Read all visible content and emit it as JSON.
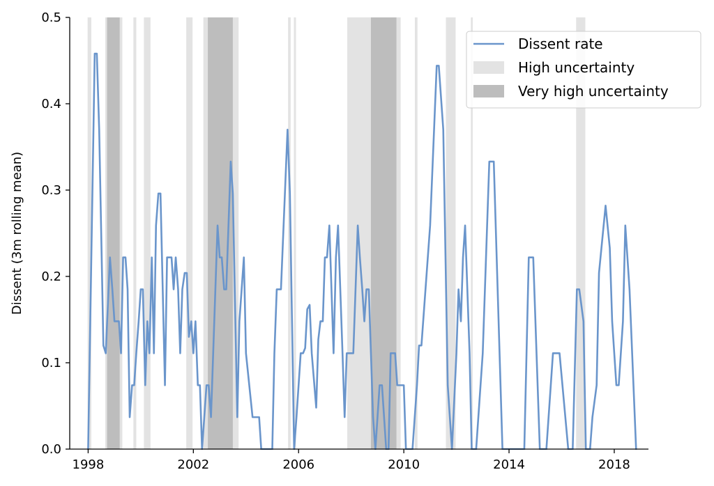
{
  "chart_data": {
    "type": "line",
    "title": "",
    "xlabel": "",
    "ylabel": "Dissent (3m rolling mean)",
    "xlim": [
      1997.3,
      2019.3
    ],
    "ylim": [
      0,
      0.5
    ],
    "x_ticks": [
      1998,
      2002,
      2006,
      2010,
      2014,
      2018
    ],
    "y_ticks": [
      0.0,
      0.1,
      0.2,
      0.3,
      0.4,
      0.5
    ],
    "legend_position": "top-right",
    "colors": {
      "line": "#6a95cb",
      "high": "#e3e3e3",
      "very_high": "#bdbdbd"
    },
    "legend": [
      {
        "label": "Dissent rate",
        "kind": "line"
      },
      {
        "label": "High uncertainty",
        "kind": "high"
      },
      {
        "label": "Very high uncertainty",
        "kind": "very_high"
      }
    ],
    "bands": [
      {
        "kind": "high",
        "start": 1997.98,
        "end": 1998.12
      },
      {
        "kind": "high",
        "start": 1998.65,
        "end": 1999.3
      },
      {
        "kind": "very_high",
        "start": 1998.72,
        "end": 1999.2
      },
      {
        "kind": "high",
        "start": 1999.72,
        "end": 1999.83
      },
      {
        "kind": "high",
        "start": 2000.12,
        "end": 2000.37
      },
      {
        "kind": "high",
        "start": 2001.73,
        "end": 2001.97
      },
      {
        "kind": "high",
        "start": 2002.38,
        "end": 2003.72
      },
      {
        "kind": "very_high",
        "start": 2002.55,
        "end": 2003.5
      },
      {
        "kind": "high",
        "start": 2005.6,
        "end": 2005.7
      },
      {
        "kind": "high",
        "start": 2005.82,
        "end": 2005.9
      },
      {
        "kind": "high",
        "start": 2007.85,
        "end": 2009.88
      },
      {
        "kind": "very_high",
        "start": 2008.75,
        "end": 2009.72
      },
      {
        "kind": "high",
        "start": 2010.42,
        "end": 2010.52
      },
      {
        "kind": "high",
        "start": 2011.6,
        "end": 2011.97
      },
      {
        "kind": "high",
        "start": 2012.55,
        "end": 2012.62
      },
      {
        "kind": "high",
        "start": 2016.55,
        "end": 2016.9
      }
    ],
    "series": [
      {
        "name": "Dissent rate",
        "points": [
          [
            1998.0,
            0.0
          ],
          [
            1998.25,
            0.458
          ],
          [
            1998.33,
            0.458
          ],
          [
            1998.42,
            0.37
          ],
          [
            1998.58,
            0.12
          ],
          [
            1998.67,
            0.111
          ],
          [
            1998.83,
            0.222
          ],
          [
            1998.92,
            0.185
          ],
          [
            1999.0,
            0.148
          ],
          [
            1999.17,
            0.148
          ],
          [
            1999.25,
            0.111
          ],
          [
            1999.33,
            0.222
          ],
          [
            1999.42,
            0.222
          ],
          [
            1999.5,
            0.185
          ],
          [
            1999.58,
            0.037
          ],
          [
            1999.67,
            0.074
          ],
          [
            1999.75,
            0.074
          ],
          [
            1999.83,
            0.111
          ],
          [
            1999.92,
            0.148
          ],
          [
            2000.0,
            0.185
          ],
          [
            2000.08,
            0.185
          ],
          [
            2000.17,
            0.074
          ],
          [
            2000.25,
            0.148
          ],
          [
            2000.33,
            0.111
          ],
          [
            2000.42,
            0.222
          ],
          [
            2000.5,
            0.111
          ],
          [
            2000.58,
            0.259
          ],
          [
            2000.67,
            0.296
          ],
          [
            2000.75,
            0.296
          ],
          [
            2000.92,
            0.074
          ],
          [
            2001.0,
            0.222
          ],
          [
            2001.17,
            0.222
          ],
          [
            2001.25,
            0.185
          ],
          [
            2001.33,
            0.222
          ],
          [
            2001.42,
            0.185
          ],
          [
            2001.5,
            0.111
          ],
          [
            2001.58,
            0.185
          ],
          [
            2001.67,
            0.204
          ],
          [
            2001.75,
            0.204
          ],
          [
            2001.83,
            0.13
          ],
          [
            2001.92,
            0.148
          ],
          [
            2002.0,
            0.111
          ],
          [
            2002.08,
            0.148
          ],
          [
            2002.17,
            0.074
          ],
          [
            2002.25,
            0.074
          ],
          [
            2002.33,
            0.0
          ],
          [
            2002.5,
            0.074
          ],
          [
            2002.58,
            0.074
          ],
          [
            2002.67,
            0.037
          ],
          [
            2002.92,
            0.259
          ],
          [
            2003.0,
            0.222
          ],
          [
            2003.08,
            0.222
          ],
          [
            2003.17,
            0.185
          ],
          [
            2003.25,
            0.185
          ],
          [
            2003.42,
            0.333
          ],
          [
            2003.5,
            0.296
          ],
          [
            2003.67,
            0.037
          ],
          [
            2003.75,
            0.148
          ],
          [
            2003.92,
            0.222
          ],
          [
            2004.0,
            0.111
          ],
          [
            2004.25,
            0.037
          ],
          [
            2004.5,
            0.037
          ],
          [
            2004.58,
            0.0
          ],
          [
            2005.0,
            0.0
          ],
          [
            2005.08,
            0.111
          ],
          [
            2005.17,
            0.185
          ],
          [
            2005.33,
            0.185
          ],
          [
            2005.58,
            0.37
          ],
          [
            2005.67,
            0.296
          ],
          [
            2005.83,
            0.0
          ],
          [
            2005.92,
            0.037
          ],
          [
            2006.08,
            0.111
          ],
          [
            2006.17,
            0.111
          ],
          [
            2006.25,
            0.117
          ],
          [
            2006.33,
            0.162
          ],
          [
            2006.42,
            0.167
          ],
          [
            2006.5,
            0.111
          ],
          [
            2006.67,
            0.048
          ],
          [
            2006.75,
            0.127
          ],
          [
            2006.83,
            0.148
          ],
          [
            2006.92,
            0.148
          ],
          [
            2007.0,
            0.222
          ],
          [
            2007.08,
            0.222
          ],
          [
            2007.17,
            0.259
          ],
          [
            2007.25,
            0.185
          ],
          [
            2007.33,
            0.111
          ],
          [
            2007.42,
            0.222
          ],
          [
            2007.5,
            0.259
          ],
          [
            2007.67,
            0.111
          ],
          [
            2007.75,
            0.037
          ],
          [
            2007.83,
            0.111
          ],
          [
            2008.08,
            0.111
          ],
          [
            2008.25,
            0.259
          ],
          [
            2008.33,
            0.222
          ],
          [
            2008.42,
            0.185
          ],
          [
            2008.5,
            0.148
          ],
          [
            2008.58,
            0.185
          ],
          [
            2008.67,
            0.185
          ],
          [
            2008.83,
            0.037
          ],
          [
            2008.92,
            0.0
          ],
          [
            2009.08,
            0.074
          ],
          [
            2009.17,
            0.074
          ],
          [
            2009.33,
            0.0
          ],
          [
            2009.42,
            0.0
          ],
          [
            2009.5,
            0.111
          ],
          [
            2009.67,
            0.111
          ],
          [
            2009.75,
            0.074
          ],
          [
            2009.83,
            0.074
          ],
          [
            2010.0,
            0.074
          ],
          [
            2010.08,
            0.0
          ],
          [
            2010.33,
            0.0
          ],
          [
            2010.5,
            0.074
          ],
          [
            2010.58,
            0.12
          ],
          [
            2010.67,
            0.12
          ],
          [
            2011.0,
            0.259
          ],
          [
            2011.25,
            0.444
          ],
          [
            2011.33,
            0.444
          ],
          [
            2011.5,
            0.37
          ],
          [
            2011.67,
            0.074
          ],
          [
            2011.83,
            0.0
          ],
          [
            2012.0,
            0.111
          ],
          [
            2012.08,
            0.185
          ],
          [
            2012.17,
            0.148
          ],
          [
            2012.25,
            0.222
          ],
          [
            2012.33,
            0.259
          ],
          [
            2012.5,
            0.111
          ],
          [
            2012.58,
            0.0
          ],
          [
            2012.75,
            0.0
          ],
          [
            2013.0,
            0.111
          ],
          [
            2013.25,
            0.333
          ],
          [
            2013.42,
            0.333
          ],
          [
            2013.75,
            0.0
          ],
          [
            2014.58,
            0.0
          ],
          [
            2014.75,
            0.222
          ],
          [
            2014.92,
            0.222
          ],
          [
            2015.17,
            0.0
          ],
          [
            2015.42,
            0.0
          ],
          [
            2015.67,
            0.111
          ],
          [
            2015.92,
            0.111
          ],
          [
            2016.25,
            0.0
          ],
          [
            2016.42,
            0.0
          ],
          [
            2016.58,
            0.185
          ],
          [
            2016.67,
            0.185
          ],
          [
            2016.83,
            0.148
          ],
          [
            2016.92,
            0.0
          ],
          [
            2017.08,
            0.0
          ],
          [
            2017.17,
            0.037
          ],
          [
            2017.33,
            0.074
          ],
          [
            2017.42,
            0.204
          ],
          [
            2017.67,
            0.282
          ],
          [
            2017.83,
            0.233
          ],
          [
            2017.92,
            0.148
          ],
          [
            2018.08,
            0.074
          ],
          [
            2018.17,
            0.074
          ],
          [
            2018.33,
            0.148
          ],
          [
            2018.42,
            0.259
          ],
          [
            2018.58,
            0.185
          ],
          [
            2018.83,
            0.0
          ]
        ]
      }
    ]
  }
}
